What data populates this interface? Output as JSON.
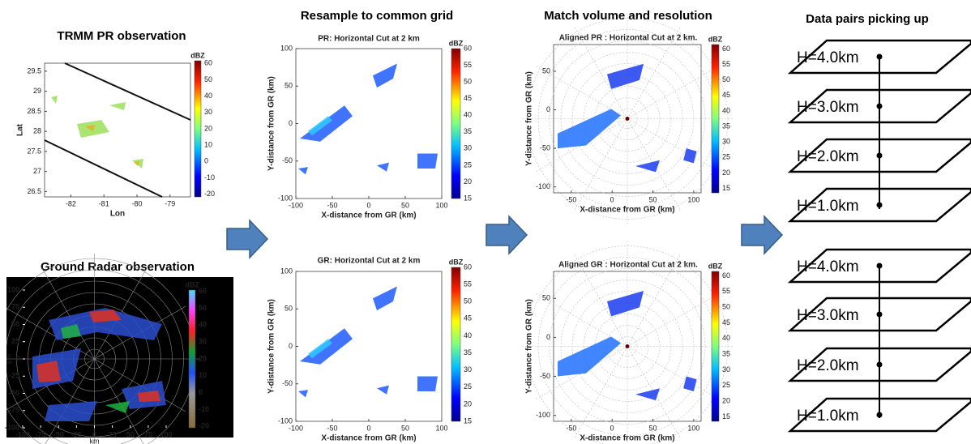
{
  "headings": [
    "Resample to common grid",
    "Match volume and resolution",
    "Data pairs picking up"
  ],
  "panels": [
    {
      "title": "TRMM PR observation",
      "x_label": "Lon",
      "y_label": "Lat",
      "x_ticks": [
        -82,
        -81,
        -80,
        -79
      ],
      "y_ticks": [
        29.5,
        29,
        28.5,
        28,
        27.5,
        27,
        26.5
      ],
      "colorbar_title": "dBZ",
      "colorbar_ticks": [
        60,
        50,
        40,
        30,
        20,
        10,
        0,
        -10,
        -20
      ]
    },
    {
      "title": "Ground Radar observation",
      "x_label": "km",
      "y_label": "km",
      "x_ticks": [
        -100,
        -75,
        -50,
        -25,
        0,
        25,
        50,
        75,
        100
      ],
      "y_ticks": [
        100,
        75,
        50,
        25,
        0,
        -25,
        -50,
        -75,
        -100
      ],
      "colorbar_title": "dBZ",
      "colorbar_ticks": [
        60,
        50,
        40,
        30,
        20,
        10,
        0,
        -10,
        -20
      ]
    },
    {
      "title": "PR: Horizontal Cut at 2 km",
      "x_label": "X-distance from GR (km)",
      "y_label": "Y-distance from GR (km)",
      "x_ticks": [
        -100,
        -50,
        0,
        50,
        100
      ],
      "y_ticks": [
        100,
        50,
        0,
        -50,
        -100
      ],
      "colorbar_title": "dBZ",
      "colorbar_ticks": [
        60,
        55,
        50,
        45,
        40,
        35,
        30,
        25,
        20,
        15
      ]
    },
    {
      "title": "GR: Horizontal Cut at 2 km",
      "x_label": "X-distance from GR (km)",
      "y_label": "Y-distance from GR (km)",
      "x_ticks": [
        -100,
        -50,
        0,
        50,
        100
      ],
      "y_ticks": [
        100,
        50,
        0,
        -50,
        -100
      ],
      "colorbar_title": "dBZ",
      "colorbar_ticks": [
        60,
        55,
        50,
        45,
        40,
        35,
        30,
        25,
        20,
        15
      ]
    },
    {
      "title": "Aligned PR : Horizontal Cut at 2 km.",
      "x_label": "X-distance from GR (km)",
      "y_label": "Y-distance from GR (km)",
      "x_ticks": [
        -50,
        0,
        50,
        100
      ],
      "y_ticks": [
        50,
        0,
        -50,
        -100
      ],
      "colorbar_title": "dBZ",
      "colorbar_ticks": [
        60,
        55,
        50,
        45,
        40,
        35,
        30,
        25,
        20,
        15
      ]
    },
    {
      "title": "Aligned GR : Horizontal Cut at 2 km.",
      "x_label": "X-distance from GR (km)",
      "y_label": "Y-distance from GR (km)",
      "x_ticks": [
        -50,
        0,
        50,
        100
      ],
      "y_ticks": [
        50,
        0,
        -50,
        -100
      ],
      "colorbar_title": "dBZ",
      "colorbar_ticks": [
        60,
        55,
        50,
        45,
        40,
        35,
        30,
        25,
        20,
        15
      ]
    }
  ],
  "layers": [
    "H=4.0km",
    "H=3.0km",
    "H=2.0km",
    "H=1.0km",
    "H=4.0km",
    "H=3.0km",
    "H=2.0km",
    "H=1.0km"
  ]
}
